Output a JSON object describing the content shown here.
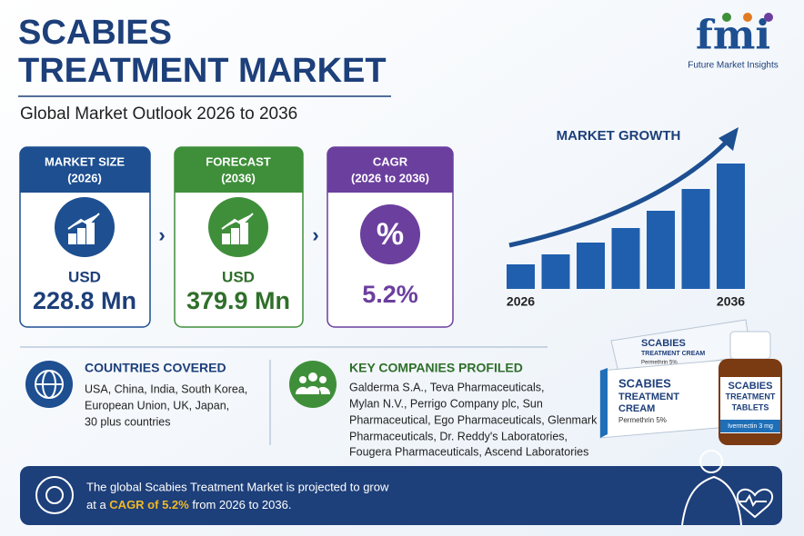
{
  "header": {
    "title_line1": "SCABIES",
    "title_line2": "TREATMENT MARKET",
    "subtitle": "Global Market Outlook 2026 to 2036"
  },
  "logo": {
    "mark": "fmi",
    "name": "Future Market Insights"
  },
  "cards": [
    {
      "heading": "MARKET SIZE",
      "period": "(2026)",
      "prefix": "USD",
      "value": "228.8 Mn"
    },
    {
      "heading": "FORECAST",
      "period": "(2036)",
      "prefix": "USD",
      "value": "379.9 Mn"
    },
    {
      "heading": "CAGR",
      "period": "(2026 to 2036)",
      "icon": "%",
      "value": "5.2%"
    }
  ],
  "chart_data": {
    "type": "bar",
    "title": "MARKET GROWTH",
    "categories": [
      "2026",
      null,
      null,
      null,
      null,
      null,
      "2036"
    ],
    "values": [
      27,
      38,
      51,
      67,
      86,
      110,
      138
    ],
    "color": "#1f5fae"
  },
  "countries": {
    "heading": "COUNTRIES COVERED",
    "lines": [
      "USA, China, India, South Korea,",
      "European Union, UK, Japan,",
      "30 plus countries"
    ]
  },
  "companies": {
    "heading": "KEY COMPANIES PROFILED",
    "lines": [
      "Galderma S.A., Teva Pharmaceuticals,",
      "Mylan N.V., Perrigo Company plc, Sun",
      "Pharmaceutical, Ego Pharmaceuticals, Glenmark",
      "Pharmaceuticals, Dr. Reddy's Laboratories,",
      "Fougera Pharmaceuticals, Ascend Laboratories"
    ]
  },
  "products": {
    "tube": {
      "line1": "SCABIES",
      "line2": "TREATMENT CREAM",
      "line3": "Permethrin 5%"
    },
    "box": {
      "line1": "SCABIES",
      "line2": "TREATMENT",
      "line3": "CREAM",
      "line4": "Permethrin 5%"
    },
    "bottle": {
      "line1": "SCABIES",
      "line2": "TREATMENT",
      "line3": "TABLETS",
      "line4": "Ivermectin 3 mg"
    }
  },
  "footer": {
    "line1": "The global Scabies Treatment Market is projected to grow",
    "line2_start": "at a ",
    "line2_highlight": "CAGR of 5.2%",
    "line2_end": " from 2026 to 2036."
  }
}
